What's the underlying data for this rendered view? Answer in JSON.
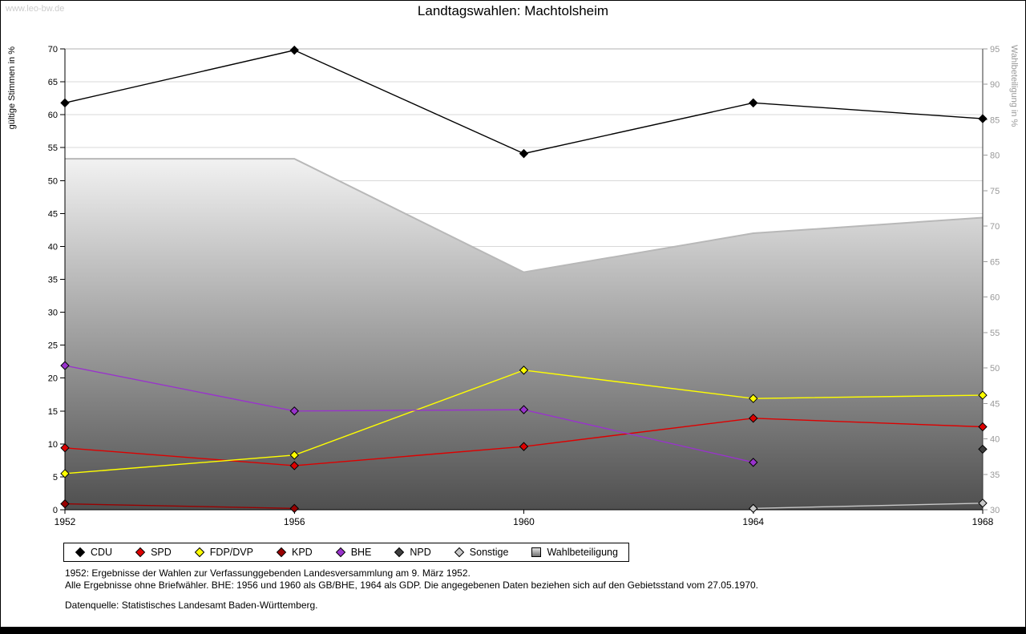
{
  "page": {
    "watermark": "www.leo-bw.de"
  },
  "chart_data": {
    "type": "line",
    "title": "Landtagswahlen: Machtolsheim",
    "x_labels": [
      "1952",
      "1956",
      "1960",
      "1964",
      "1968"
    ],
    "left_axis": {
      "label": "gültige Stimmen in %",
      "min": 0,
      "max": 70,
      "ticks": [
        0,
        5,
        10,
        15,
        20,
        25,
        30,
        35,
        40,
        45,
        50,
        55,
        60,
        65,
        70
      ]
    },
    "right_axis": {
      "label": "Wahlbeteiligung in %",
      "min": 30,
      "max": 95,
      "ticks": [
        30,
        35,
        40,
        45,
        50,
        55,
        60,
        65,
        70,
        75,
        80,
        85,
        90,
        95
      ]
    },
    "grid": true,
    "legend_position": "bottom",
    "series": [
      {
        "name": "CDU",
        "color": "#000000",
        "axis": "left",
        "shape": "diamond",
        "values": [
          61.8,
          69.8,
          54.1,
          61.8,
          59.4
        ]
      },
      {
        "name": "SPD",
        "color": "#dd0000",
        "axis": "left",
        "shape": "diamond",
        "values": [
          9.4,
          6.7,
          9.6,
          13.9,
          12.6
        ]
      },
      {
        "name": "FDP/DVP",
        "color": "#ffff00",
        "axis": "left",
        "shape": "diamond",
        "values": [
          5.5,
          8.3,
          21.2,
          16.9,
          17.4
        ]
      },
      {
        "name": "KPD",
        "color": "#990000",
        "axis": "left",
        "shape": "diamond",
        "values": [
          0.9,
          0.2,
          null,
          null,
          null
        ]
      },
      {
        "name": "BHE",
        "color": "#9933cc",
        "axis": "left",
        "shape": "diamond",
        "values": [
          21.9,
          15.0,
          15.2,
          7.2,
          null
        ]
      },
      {
        "name": "NPD",
        "color": "#3d3d3d",
        "axis": "left",
        "shape": "diamond",
        "values": [
          null,
          null,
          null,
          null,
          9.2
        ]
      },
      {
        "name": "Sonstige",
        "color": "#c8c8c8",
        "axis": "left",
        "shape": "diamond",
        "values": [
          null,
          null,
          null,
          0.2,
          1.0
        ]
      },
      {
        "name": "Wahlbeteiligung",
        "color": "#bbbbbb",
        "axis": "right",
        "type": "area",
        "gradient": [
          "#f2f2f2",
          "#4f4f4f"
        ],
        "values": [
          79.5,
          79.5,
          63.5,
          69.0,
          71.2
        ]
      }
    ]
  },
  "footnotes": [
    "1952: Ergebnisse der Wahlen zur Verfassunggebenden Landesversammlung am 9. März 1952.",
    "Alle Ergebnisse ohne Briefwähler. BHE: 1956 und 1960 als GB/BHE, 1964 als GDP. Die angegebenen Daten beziehen sich auf den Gebietsstand vom 27.05.1970.",
    "Datenquelle: Statistisches Landesamt Baden-Württemberg."
  ]
}
